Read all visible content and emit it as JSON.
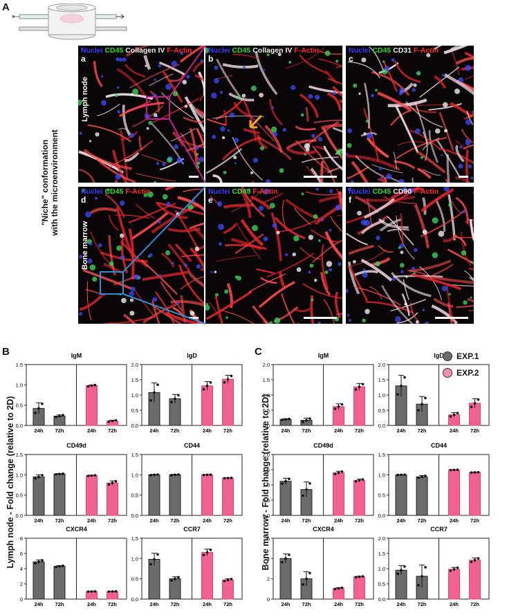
{
  "panels": {
    "A": "A",
    "B": "B",
    "C": "C"
  },
  "niche_label_line1": "\"Niche\" conformation",
  "niche_label_line2": "with the microenvironment",
  "tissue": {
    "ln": "Lymph node",
    "bm": "Bone marrow"
  },
  "micro": [
    {
      "id": "a",
      "legend": [
        [
          "Nuclei",
          "nuc"
        ],
        [
          "CD45",
          "cd45"
        ],
        [
          "Collagen IV",
          "white"
        ],
        [
          "F-Actin",
          "act"
        ]
      ]
    },
    {
      "id": "b",
      "legend": [
        [
          "Nuclei",
          "nuc"
        ],
        [
          "CD45",
          "cd45"
        ],
        [
          "Collagen IV",
          "white"
        ],
        [
          "F-Actin",
          "act"
        ]
      ]
    },
    {
      "id": "c",
      "legend": [
        [
          "Nuclei",
          "nuc"
        ],
        [
          "CD45",
          "cd45"
        ],
        [
          "CD31",
          "white"
        ],
        [
          "F-Actin",
          "act"
        ]
      ]
    },
    {
      "id": "d",
      "legend": [
        [
          "Nuclei",
          "nuc"
        ],
        [
          "CD45",
          "cd45"
        ],
        [
          "F-Actin",
          "act"
        ]
      ]
    },
    {
      "id": "e",
      "legend": [
        [
          "Nuclei",
          "nuc"
        ],
        [
          "CD45",
          "cd45"
        ],
        [
          "F-Actin",
          "act"
        ]
      ]
    },
    {
      "id": "f",
      "legend": [
        [
          "Nuclei",
          "nuc"
        ],
        [
          "CD45",
          "cd45"
        ],
        [
          "CD90",
          "white"
        ],
        [
          "F-Actin",
          "act"
        ]
      ]
    }
  ],
  "ylabel_B": "Lymph node  -  Fold change (relative to 2D)",
  "ylabel_C": "Bone marrow  -  Fold change (relative to 2D)",
  "legend": [
    {
      "name": "EXP.1",
      "color": "#6b6b6b"
    },
    {
      "name": "EXP.2",
      "color": "#f48fb1"
    }
  ],
  "colors": {
    "exp1": "#6b6b6b",
    "exp2": "#f06292",
    "exp2_stroke": "#e0407a"
  },
  "chart_data": [
    {
      "type": "bar",
      "panel": "B",
      "title": "IgM",
      "categories": [
        "24h",
        "72h",
        "24h",
        "72h"
      ],
      "ylim": [
        0,
        1.5
      ],
      "yticks": [
        "0.0",
        "0.5",
        "1.0",
        "1.5"
      ],
      "values": [
        0.42,
        0.23,
        0.98,
        0.11
      ],
      "errors": [
        0.14,
        0.03,
        0.02,
        0.02
      ],
      "groups": [
        "EXP.1",
        "EXP.1",
        "EXP.2",
        "EXP.2"
      ]
    },
    {
      "type": "bar",
      "panel": "B",
      "title": "IgD",
      "categories": [
        "24h",
        "72h",
        "24h",
        "72h"
      ],
      "ylim": [
        0,
        2.0
      ],
      "yticks": [
        "0.0",
        "0.5",
        "1.0",
        "1.5",
        "2.0"
      ],
      "values": [
        1.08,
        0.88,
        1.3,
        1.52
      ],
      "errors": [
        0.32,
        0.14,
        0.14,
        0.13
      ],
      "groups": [
        "EXP.1",
        "EXP.1",
        "EXP.2",
        "EXP.2"
      ]
    },
    {
      "type": "bar",
      "panel": "B",
      "title": "CD49d",
      "categories": [
        "24h",
        "72h",
        "24h",
        "72h"
      ],
      "ylim": [
        0,
        1.5
      ],
      "yticks": [
        "0.0",
        "0.5",
        "1.0",
        "1.5"
      ],
      "values": [
        0.95,
        1.02,
        0.98,
        0.8
      ],
      "errors": [
        0.05,
        0.01,
        0.01,
        0.05
      ],
      "groups": [
        "EXP.1",
        "EXP.1",
        "EXP.2",
        "EXP.2"
      ]
    },
    {
      "type": "bar",
      "panel": "B",
      "title": "CD44",
      "categories": [
        "24h",
        "72h",
        "24h",
        "72h"
      ],
      "ylim": [
        0,
        1.5
      ],
      "yticks": [
        "0.0",
        "0.5",
        "1.0",
        "1.5"
      ],
      "values": [
        1.0,
        1.0,
        1.0,
        0.92
      ],
      "errors": [
        0.01,
        0.01,
        0.005,
        0.005
      ],
      "groups": [
        "EXP.1",
        "EXP.1",
        "EXP.2",
        "EXP.2"
      ]
    },
    {
      "type": "bar",
      "panel": "B",
      "title": "CXCR4",
      "categories": [
        "24h",
        "72h",
        "24h",
        "72h"
      ],
      "ylim": [
        0,
        8
      ],
      "yticks": [
        "0",
        "2",
        "4",
        "6",
        "8"
      ],
      "values": [
        4.9,
        4.3,
        1.0,
        1.0
      ],
      "errors": [
        0.25,
        0.1,
        0.02,
        0.02
      ],
      "groups": [
        "EXP.1",
        "EXP.1",
        "EXP.2",
        "EXP.2"
      ]
    },
    {
      "type": "bar",
      "panel": "B",
      "title": "CCR7",
      "categories": [
        "24h",
        "72h",
        "24h",
        "72h"
      ],
      "ylim": [
        0,
        1.5
      ],
      "yticks": [
        "0.0",
        "0.5",
        "1.0",
        "1.5"
      ],
      "values": [
        0.98,
        0.5,
        1.15,
        0.47
      ],
      "errors": [
        0.15,
        0.05,
        0.08,
        0.03
      ],
      "groups": [
        "EXP.1",
        "EXP.1",
        "EXP.2",
        "EXP.2"
      ]
    },
    {
      "type": "bar",
      "panel": "C",
      "title": "IgM",
      "categories": [
        "24h",
        "72h",
        "24h",
        "72h"
      ],
      "ylim": [
        0,
        2.0
      ],
      "yticks": [
        "0.0",
        "0.5",
        "1.0",
        "1.5",
        "2.0"
      ],
      "values": [
        0.2,
        0.17,
        0.62,
        1.27
      ],
      "errors": [
        0.02,
        0.07,
        0.09,
        0.11
      ],
      "groups": [
        "EXP.1",
        "EXP.1",
        "EXP.2",
        "EXP.2"
      ]
    },
    {
      "type": "bar",
      "panel": "C",
      "title": "IgD",
      "categories": [
        "24h",
        "72h",
        "24h",
        "72h"
      ],
      "ylim": [
        0,
        2.0
      ],
      "yticks": [
        "0.0",
        "0.5",
        "1.0",
        "1.5",
        "2.0"
      ],
      "values": [
        1.3,
        0.7,
        0.35,
        0.73
      ],
      "errors": [
        0.35,
        0.25,
        0.07,
        0.15
      ],
      "groups": [
        "EXP.1",
        "EXP.1",
        "EXP.2",
        "EXP.2"
      ]
    },
    {
      "type": "bar",
      "panel": "C",
      "title": "CD49d",
      "categories": [
        "24h",
        "72h",
        "24h",
        "72h"
      ],
      "ylim": [
        0,
        2.0
      ],
      "yticks": [
        "0.0",
        "0.5",
        "1.0",
        "1.5",
        "2.0"
      ],
      "values": [
        1.12,
        0.85,
        1.4,
        1.15
      ],
      "errors": [
        0.1,
        0.25,
        0.05,
        0.04
      ],
      "groups": [
        "EXP.1",
        "EXP.1",
        "EXP.2",
        "EXP.2"
      ]
    },
    {
      "type": "bar",
      "panel": "C",
      "title": "CD44",
      "categories": [
        "24h",
        "72h",
        "24h",
        "72h"
      ],
      "ylim": [
        0,
        1.5
      ],
      "yticks": [
        "0.0",
        "0.5",
        "1.0",
        "1.5"
      ],
      "values": [
        1.0,
        0.95,
        1.12,
        1.06
      ],
      "errors": [
        0.005,
        0.03,
        0.005,
        0.005
      ],
      "groups": [
        "EXP.1",
        "EXP.1",
        "EXP.2",
        "EXP.2"
      ]
    },
    {
      "type": "bar",
      "panel": "C",
      "title": "CXCR4",
      "categories": [
        "24h",
        "72h",
        "24h",
        "72h"
      ],
      "ylim": [
        0,
        6
      ],
      "yticks": [
        "0",
        "2",
        "4",
        "6"
      ],
      "values": [
        4.0,
        2.0,
        1.05,
        2.2
      ],
      "errors": [
        0.45,
        0.7,
        0.08,
        0.05
      ],
      "groups": [
        "EXP.1",
        "EXP.1",
        "EXP.2",
        "EXP.2"
      ]
    },
    {
      "type": "bar",
      "panel": "C",
      "title": "CCR7",
      "categories": [
        "24h",
        "72h",
        "24h",
        "72h"
      ],
      "ylim": [
        0,
        2.0
      ],
      "yticks": [
        "0.0",
        "0.5",
        "1.0",
        "1.5",
        "2.0"
      ],
      "values": [
        0.95,
        0.75,
        0.98,
        1.28
      ],
      "errors": [
        0.15,
        0.37,
        0.06,
        0.07
      ],
      "groups": [
        "EXP.1",
        "EXP.1",
        "EXP.2",
        "EXP.2"
      ]
    }
  ]
}
